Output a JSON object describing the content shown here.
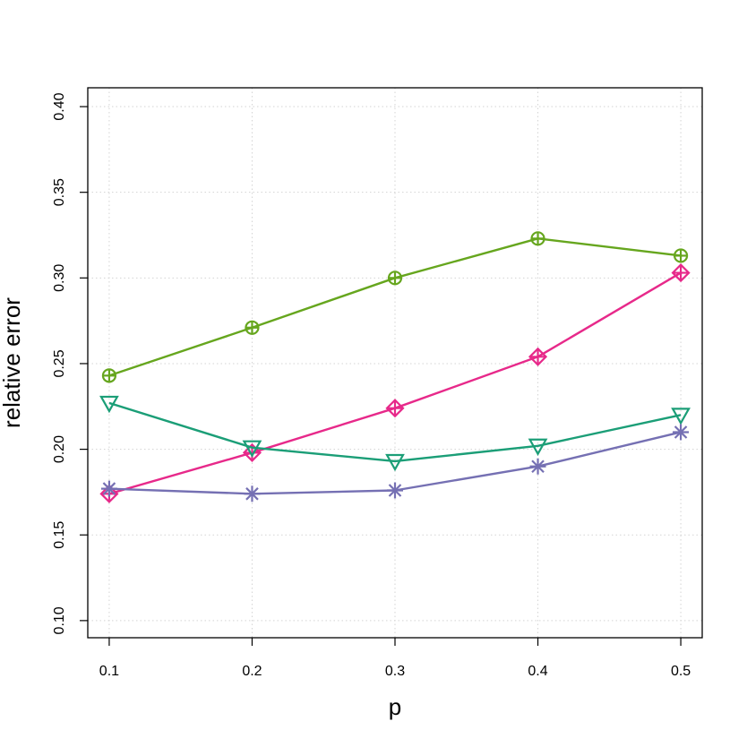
{
  "chart_data": {
    "type": "line",
    "title": "",
    "xlabel": "p",
    "ylabel": "relative error",
    "x": [
      0.1,
      0.2,
      0.3,
      0.4,
      0.5
    ],
    "x_tick_labels": [
      "0.1",
      "0.2",
      "0.3",
      "0.4",
      "0.5"
    ],
    "xlim": [
      0.085,
      0.515
    ],
    "ylim": [
      0.09,
      0.411
    ],
    "y_ticks": [
      0.1,
      0.15,
      0.2,
      0.25,
      0.3,
      0.35,
      0.4
    ],
    "y_tick_labels": [
      "0.10",
      "0.15",
      "0.20",
      "0.25",
      "0.30",
      "0.35",
      "0.40"
    ],
    "grid": true,
    "legend": "none",
    "series": [
      {
        "color": "#66a61e",
        "marker": "circle-plus",
        "values": [
          0.243,
          0.271,
          0.3,
          0.323,
          0.313
        ]
      },
      {
        "color": "#e7298a",
        "marker": "diamond-plus",
        "values": [
          0.174,
          0.198,
          0.224,
          0.254,
          0.303
        ]
      },
      {
        "color": "#1b9e77",
        "marker": "triangle-down",
        "values": [
          0.227,
          0.201,
          0.193,
          0.202,
          0.22
        ]
      },
      {
        "color": "#7570b3",
        "marker": "asterisk",
        "values": [
          0.177,
          0.174,
          0.176,
          0.19,
          0.21
        ]
      }
    ]
  }
}
